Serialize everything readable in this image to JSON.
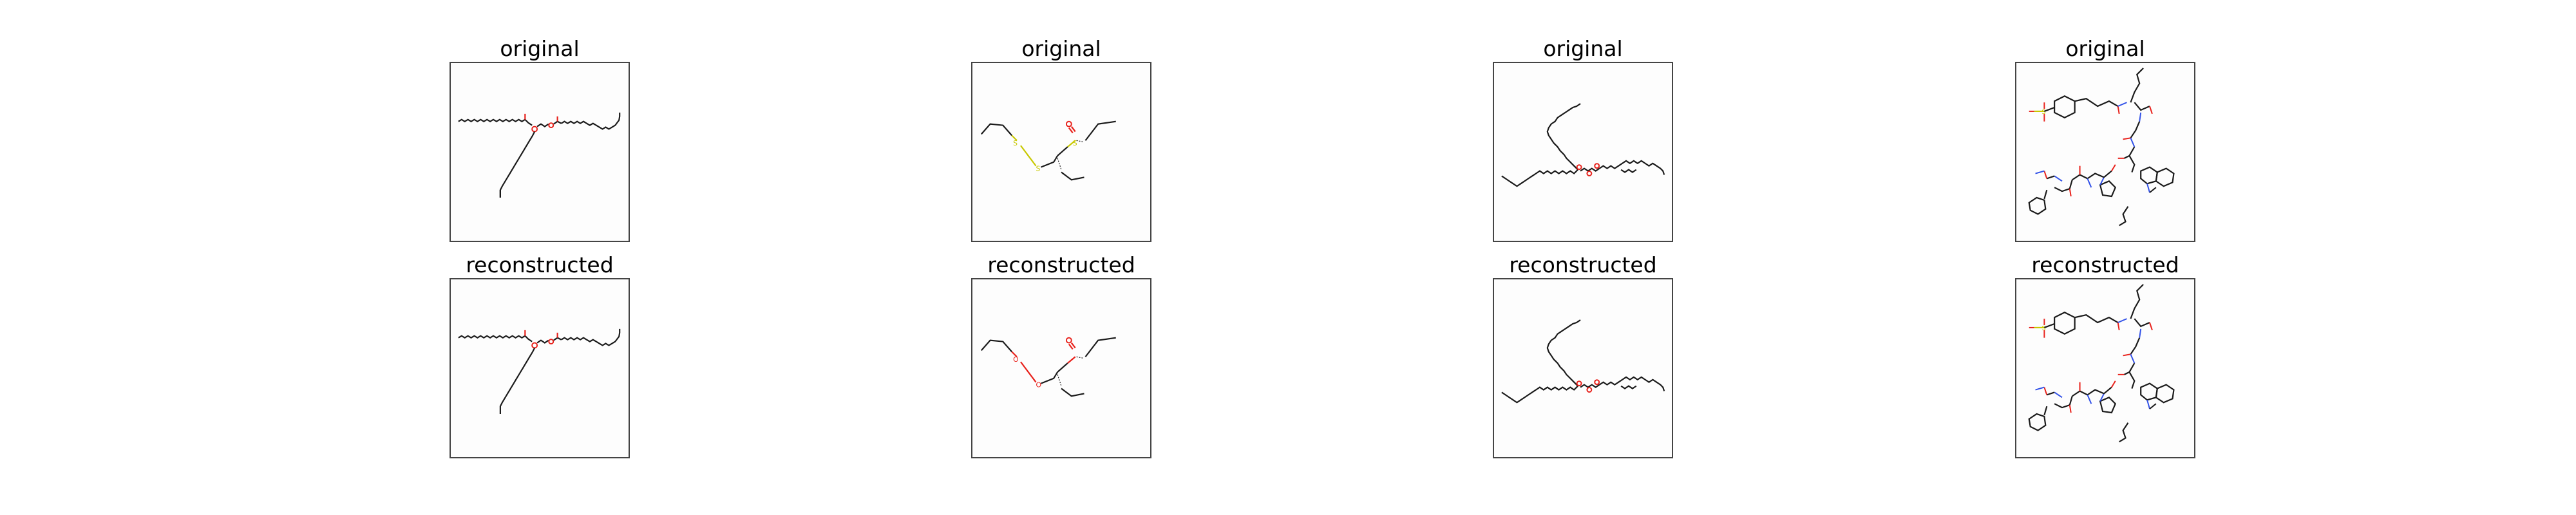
{
  "colors": {
    "bond": "#1a1a1a",
    "oxygen": "#e8201a",
    "sulfur": "#c8c800",
    "nitrogen": "#3050e8",
    "frame": "#444444"
  },
  "titles": {
    "p1_top": "original",
    "p2_top": "original",
    "p3_top": "original",
    "p4_top": "original",
    "p1_bottom": "reconstructed",
    "p2_bottom": "reconstructed",
    "p3_bottom": "reconstructed",
    "p4_bottom": "reconstructed"
  },
  "atom_labels": {
    "oxygen": "O",
    "sulfur": "S",
    "nitrogen": "N",
    "fluorine": "F"
  }
}
